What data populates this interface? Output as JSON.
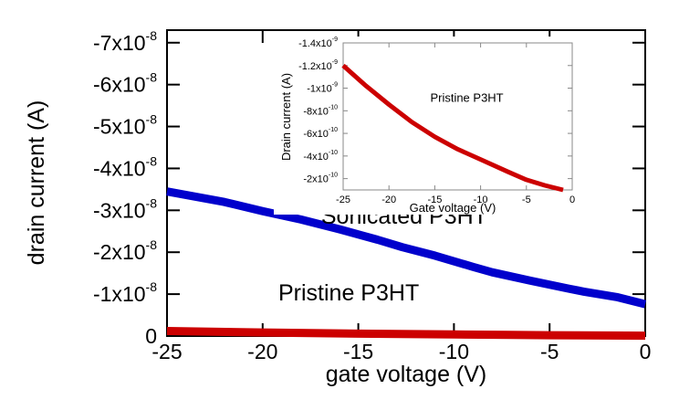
{
  "chart_data": [
    {
      "id": "main",
      "type": "line",
      "title": "",
      "xlabel": "gate voltage (V)",
      "ylabel": "drain current (A)",
      "xlim": [
        -25,
        0
      ],
      "ylim": [
        0,
        -7.3e-08
      ],
      "xticks": [
        -25,
        -20,
        -15,
        -10,
        -5,
        0
      ],
      "xtick_labels": [
        "-25",
        "-20",
        "-15",
        "-10",
        "-5",
        "0"
      ],
      "yticks": [
        0,
        -1e-08,
        -2e-08,
        -3e-08,
        -4e-08,
        -5e-08,
        -6e-08,
        -7e-08
      ],
      "ytick_labels": [
        {
          "base": "0",
          "exp": ""
        },
        {
          "base": "-1x10",
          "exp": "-8"
        },
        {
          "base": "-2x10",
          "exp": "-8"
        },
        {
          "base": "-3x10",
          "exp": "-8"
        },
        {
          "base": "-4x10",
          "exp": "-8"
        },
        {
          "base": "-5x10",
          "exp": "-8"
        },
        {
          "base": "-6x10",
          "exp": "-8"
        },
        {
          "base": "-7x10",
          "exp": "-8"
        }
      ],
      "grid": false,
      "series": [
        {
          "name": "Sonicated P3HT",
          "color": "#0000cc",
          "x": [
            -25,
            -22,
            -20,
            -18,
            -16,
            -14,
            -12.7,
            -11,
            -9,
            -8,
            -6,
            -4,
            -3.2,
            -1.5,
            0
          ],
          "y": [
            -3.45e-08,
            -3.2e-08,
            -2.98e-08,
            -2.78e-08,
            -2.55e-08,
            -2.3e-08,
            -2.12e-08,
            -1.92e-08,
            -1.65e-08,
            -1.52e-08,
            -1.32e-08,
            -1.13e-08,
            -1.06e-08,
            -9.3e-09,
            -7.6e-09
          ]
        },
        {
          "name": "Pristine P3HT",
          "color": "#cc0000",
          "x": [
            -25,
            -20,
            -15,
            -10,
            -7,
            -5,
            -1,
            0
          ],
          "y": [
            -1.2e-09,
            -8.55e-10,
            -5.7e-10,
            -3.7e-10,
            -2.6e-10,
            -1.9e-10,
            -1e-10,
            -8e-11
          ]
        }
      ],
      "annotations": [
        {
          "text": "Sonicated P3HT",
          "x": -12.6,
          "y": -2.68e-08
        },
        {
          "text": "Pristine P3HT",
          "x": -15.5,
          "y": -8.5e-09
        }
      ]
    },
    {
      "id": "inset",
      "type": "line",
      "title": "",
      "xlabel": "Gate voltage (V)",
      "ylabel": "Drain current (A)",
      "xlim": [
        -25,
        0
      ],
      "ylim": [
        -1e-10,
        -1.4e-09
      ],
      "xticks": [
        -25,
        -20,
        -15,
        -10,
        -5,
        0
      ],
      "xtick_labels": [
        "-25",
        "-20",
        "-15",
        "-10",
        "-5",
        "0"
      ],
      "yticks": [
        -2e-10,
        -4e-10,
        -6e-10,
        -8e-10,
        -1e-09,
        -1.2e-09,
        -1.4e-09
      ],
      "ytick_labels": [
        {
          "base": "-2x10",
          "exp": "-10"
        },
        {
          "base": "-4x10",
          "exp": "-10"
        },
        {
          "base": "-6x10",
          "exp": "-10"
        },
        {
          "base": "-8x10",
          "exp": "-10"
        },
        {
          "base": "-1x10",
          "exp": "-9"
        },
        {
          "base": "-1.2x10",
          "exp": "-9"
        },
        {
          "base": "-1.4x10",
          "exp": "-9"
        }
      ],
      "grid": false,
      "series": [
        {
          "name": "Pristine P3HT",
          "color": "#cc0000",
          "x": [
            -25,
            -22.5,
            -20,
            -17.5,
            -15,
            -12.5,
            -10,
            -7,
            -5,
            -3,
            -1
          ],
          "y": [
            -1.2e-09,
            -1.02e-09,
            -8.55e-10,
            -7e-10,
            -5.7e-10,
            -4.6e-10,
            -3.7e-10,
            -2.6e-10,
            -1.9e-10,
            -1.4e-10,
            -1e-10
          ]
        }
      ],
      "annotations": [
        {
          "text": "Pristine P3HT",
          "x": -11.5,
          "y": -8.8e-10
        }
      ]
    }
  ]
}
